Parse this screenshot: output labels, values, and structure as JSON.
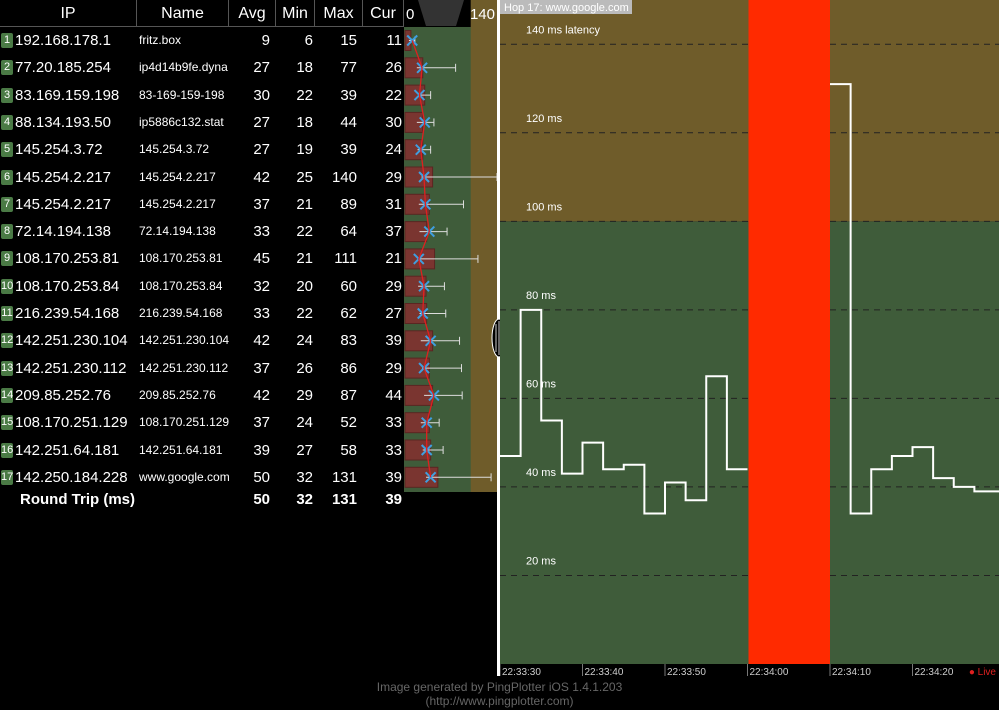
{
  "table": {
    "headers": {
      "ip": "IP",
      "name": "Name",
      "avg": "Avg",
      "min": "Min",
      "max": "Max",
      "cur": "Cur"
    },
    "hops": [
      {
        "n": "1",
        "ip": "192.168.178.1",
        "name": "fritz.box",
        "avg": "9",
        "min": "6",
        "max": "15",
        "cur": "11"
      },
      {
        "n": "2",
        "ip": "77.20.185.254",
        "name": "ip4d14b9fe.dyna",
        "avg": "27",
        "min": "18",
        "max": "77",
        "cur": "26"
      },
      {
        "n": "3",
        "ip": "83.169.159.198",
        "name": "83-169-159-198",
        "avg": "30",
        "min": "22",
        "max": "39",
        "cur": "22"
      },
      {
        "n": "4",
        "ip": "88.134.193.50",
        "name": "ip5886c132.stat",
        "avg": "27",
        "min": "18",
        "max": "44",
        "cur": "30"
      },
      {
        "n": "5",
        "ip": "145.254.3.72",
        "name": "145.254.3.72",
        "avg": "27",
        "min": "19",
        "max": "39",
        "cur": "24"
      },
      {
        "n": "6",
        "ip": "145.254.2.217",
        "name": "145.254.2.217",
        "avg": "42",
        "min": "25",
        "max": "140",
        "cur": "29"
      },
      {
        "n": "7",
        "ip": "145.254.2.217",
        "name": "145.254.2.217",
        "avg": "37",
        "min": "21",
        "max": "89",
        "cur": "31"
      },
      {
        "n": "8",
        "ip": "72.14.194.138",
        "name": "72.14.194.138",
        "avg": "33",
        "min": "22",
        "max": "64",
        "cur": "37"
      },
      {
        "n": "9",
        "ip": "108.170.253.81",
        "name": "108.170.253.81",
        "avg": "45",
        "min": "21",
        "max": "111",
        "cur": "21"
      },
      {
        "n": "10",
        "ip": "108.170.253.84",
        "name": "108.170.253.84",
        "avg": "32",
        "min": "20",
        "max": "60",
        "cur": "29"
      },
      {
        "n": "11",
        "ip": "216.239.54.168",
        "name": "216.239.54.168",
        "avg": "33",
        "min": "22",
        "max": "62",
        "cur": "27"
      },
      {
        "n": "12",
        "ip": "142.251.230.104",
        "name": "142.251.230.104",
        "avg": "42",
        "min": "24",
        "max": "83",
        "cur": "39"
      },
      {
        "n": "13",
        "ip": "142.251.230.112",
        "name": "142.251.230.112",
        "avg": "37",
        "min": "26",
        "max": "86",
        "cur": "29"
      },
      {
        "n": "14",
        "ip": "209.85.252.76",
        "name": "209.85.252.76",
        "avg": "42",
        "min": "29",
        "max": "87",
        "cur": "44"
      },
      {
        "n": "15",
        "ip": "108.170.251.129",
        "name": "108.170.251.129",
        "avg": "37",
        "min": "24",
        "max": "52",
        "cur": "33"
      },
      {
        "n": "16",
        "ip": "142.251.64.181",
        "name": "142.251.64.181",
        "avg": "39",
        "min": "27",
        "max": "58",
        "cur": "33"
      },
      {
        "n": "17",
        "ip": "142.250.184.228",
        "name": "www.google.com",
        "avg": "50",
        "min": "32",
        "max": "131",
        "cur": "39"
      }
    ],
    "round_trip": {
      "label": "Round Trip (ms)",
      "avg": "50",
      "min": "32",
      "max": "131",
      "cur": "39"
    }
  },
  "mini_graph": {
    "scale_min": "0",
    "scale_max": "140"
  },
  "graph": {
    "title": "Hop 17: www.google.com",
    "live_label": "Live",
    "time_labels": [
      "22:33:30",
      "22:33:40",
      "22:33:50",
      "22:34:00",
      "22:34:10",
      "22:34:20"
    ],
    "y_labels": [
      "140 ms latency",
      "120 ms",
      "100 ms",
      "80 ms",
      "60 ms",
      "40 ms",
      "20 ms"
    ]
  },
  "chart_data": {
    "type": "line",
    "title": "Hop 17: www.google.com",
    "xlabel": "",
    "ylabel": "",
    "ylim": [
      0,
      150
    ],
    "y_ticks": [
      20,
      40,
      60,
      80,
      100,
      120,
      140
    ],
    "x_ticks": [
      "22:33:30",
      "22:33:40",
      "22:33:50",
      "22:34:00",
      "22:34:10",
      "22:34:20"
    ],
    "bands": [
      {
        "from": 0,
        "to": 100,
        "color": "#3f5c3a"
      },
      {
        "from": 100,
        "to": 150,
        "color": "#6f5c2a"
      }
    ],
    "packet_loss_interval": [
      "22:34:00",
      "22:34:10"
    ],
    "series": [
      {
        "x": [
          "22:33:30",
          "22:33:32.5",
          "22:33:35",
          "22:33:37.5",
          "22:33:40",
          "22:33:42.5",
          "22:33:45",
          "22:33:47.5",
          "22:33:50",
          "22:33:52.5",
          "22:33:55",
          "22:33:57.5",
          "22:34:00",
          "22:34:10",
          "22:34:12.5",
          "22:34:15",
          "22:34:17.5",
          "22:34:20",
          "22:34:22.5",
          "22:34:25",
          "22:34:27.5"
        ],
        "values": [
          47,
          80,
          55,
          43,
          50,
          44,
          45,
          34,
          41,
          37,
          65,
          44,
          null,
          131,
          34,
          44,
          47,
          49,
          42,
          40,
          39
        ]
      }
    ],
    "colors": {
      "line": "#ffffff",
      "loss": "#ff2a00",
      "mini_bar": "#7a3530",
      "mini_marker": "#3f9fe0",
      "mini_line": "#e02020"
    }
  }
}
